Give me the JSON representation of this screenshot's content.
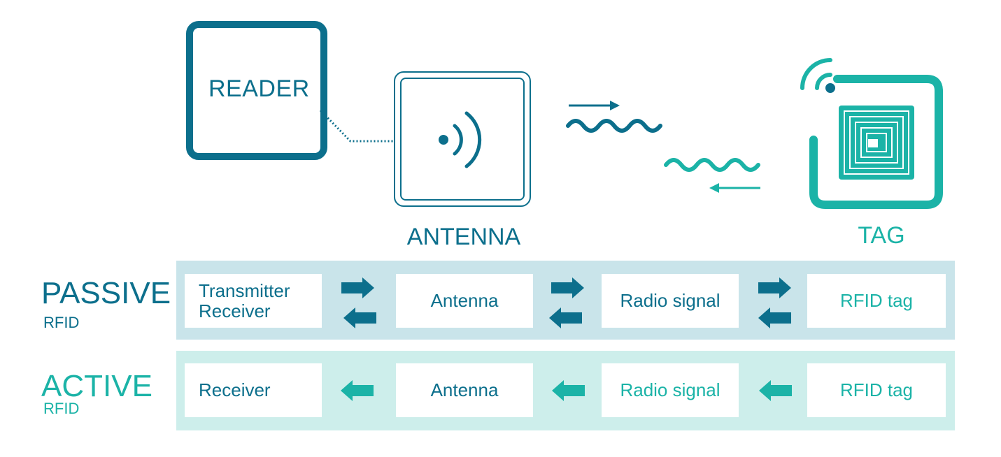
{
  "illustration": {
    "reader_label": "READER",
    "antenna_label": "ANTENNA",
    "tag_label": "TAG"
  },
  "passive": {
    "title": "PASSIVE",
    "subtitle": "RFID",
    "cells": {
      "c1_line1": "Transmitter",
      "c1_line2": "Receiver",
      "c2": "Antenna",
      "c3": "Radio signal",
      "c4": "RFID tag"
    }
  },
  "active": {
    "title": "ACTIVE",
    "subtitle": "RFID",
    "cells": {
      "c1": "Receiver",
      "c2": "Antenna",
      "c3": "Radio signal",
      "c4": "RFID tag"
    }
  },
  "colors": {
    "primary": "#0c6f8c",
    "accent": "#1bb3a7",
    "passive_band": "#c9e4ea",
    "active_band": "#cdeeeb"
  },
  "icons": {
    "reader": "reader-device-icon",
    "antenna": "antenna-signal-icon",
    "tag": "rfid-tag-chip-icon",
    "wave": "radio-wave-icon",
    "arrow": "arrow-icon"
  }
}
